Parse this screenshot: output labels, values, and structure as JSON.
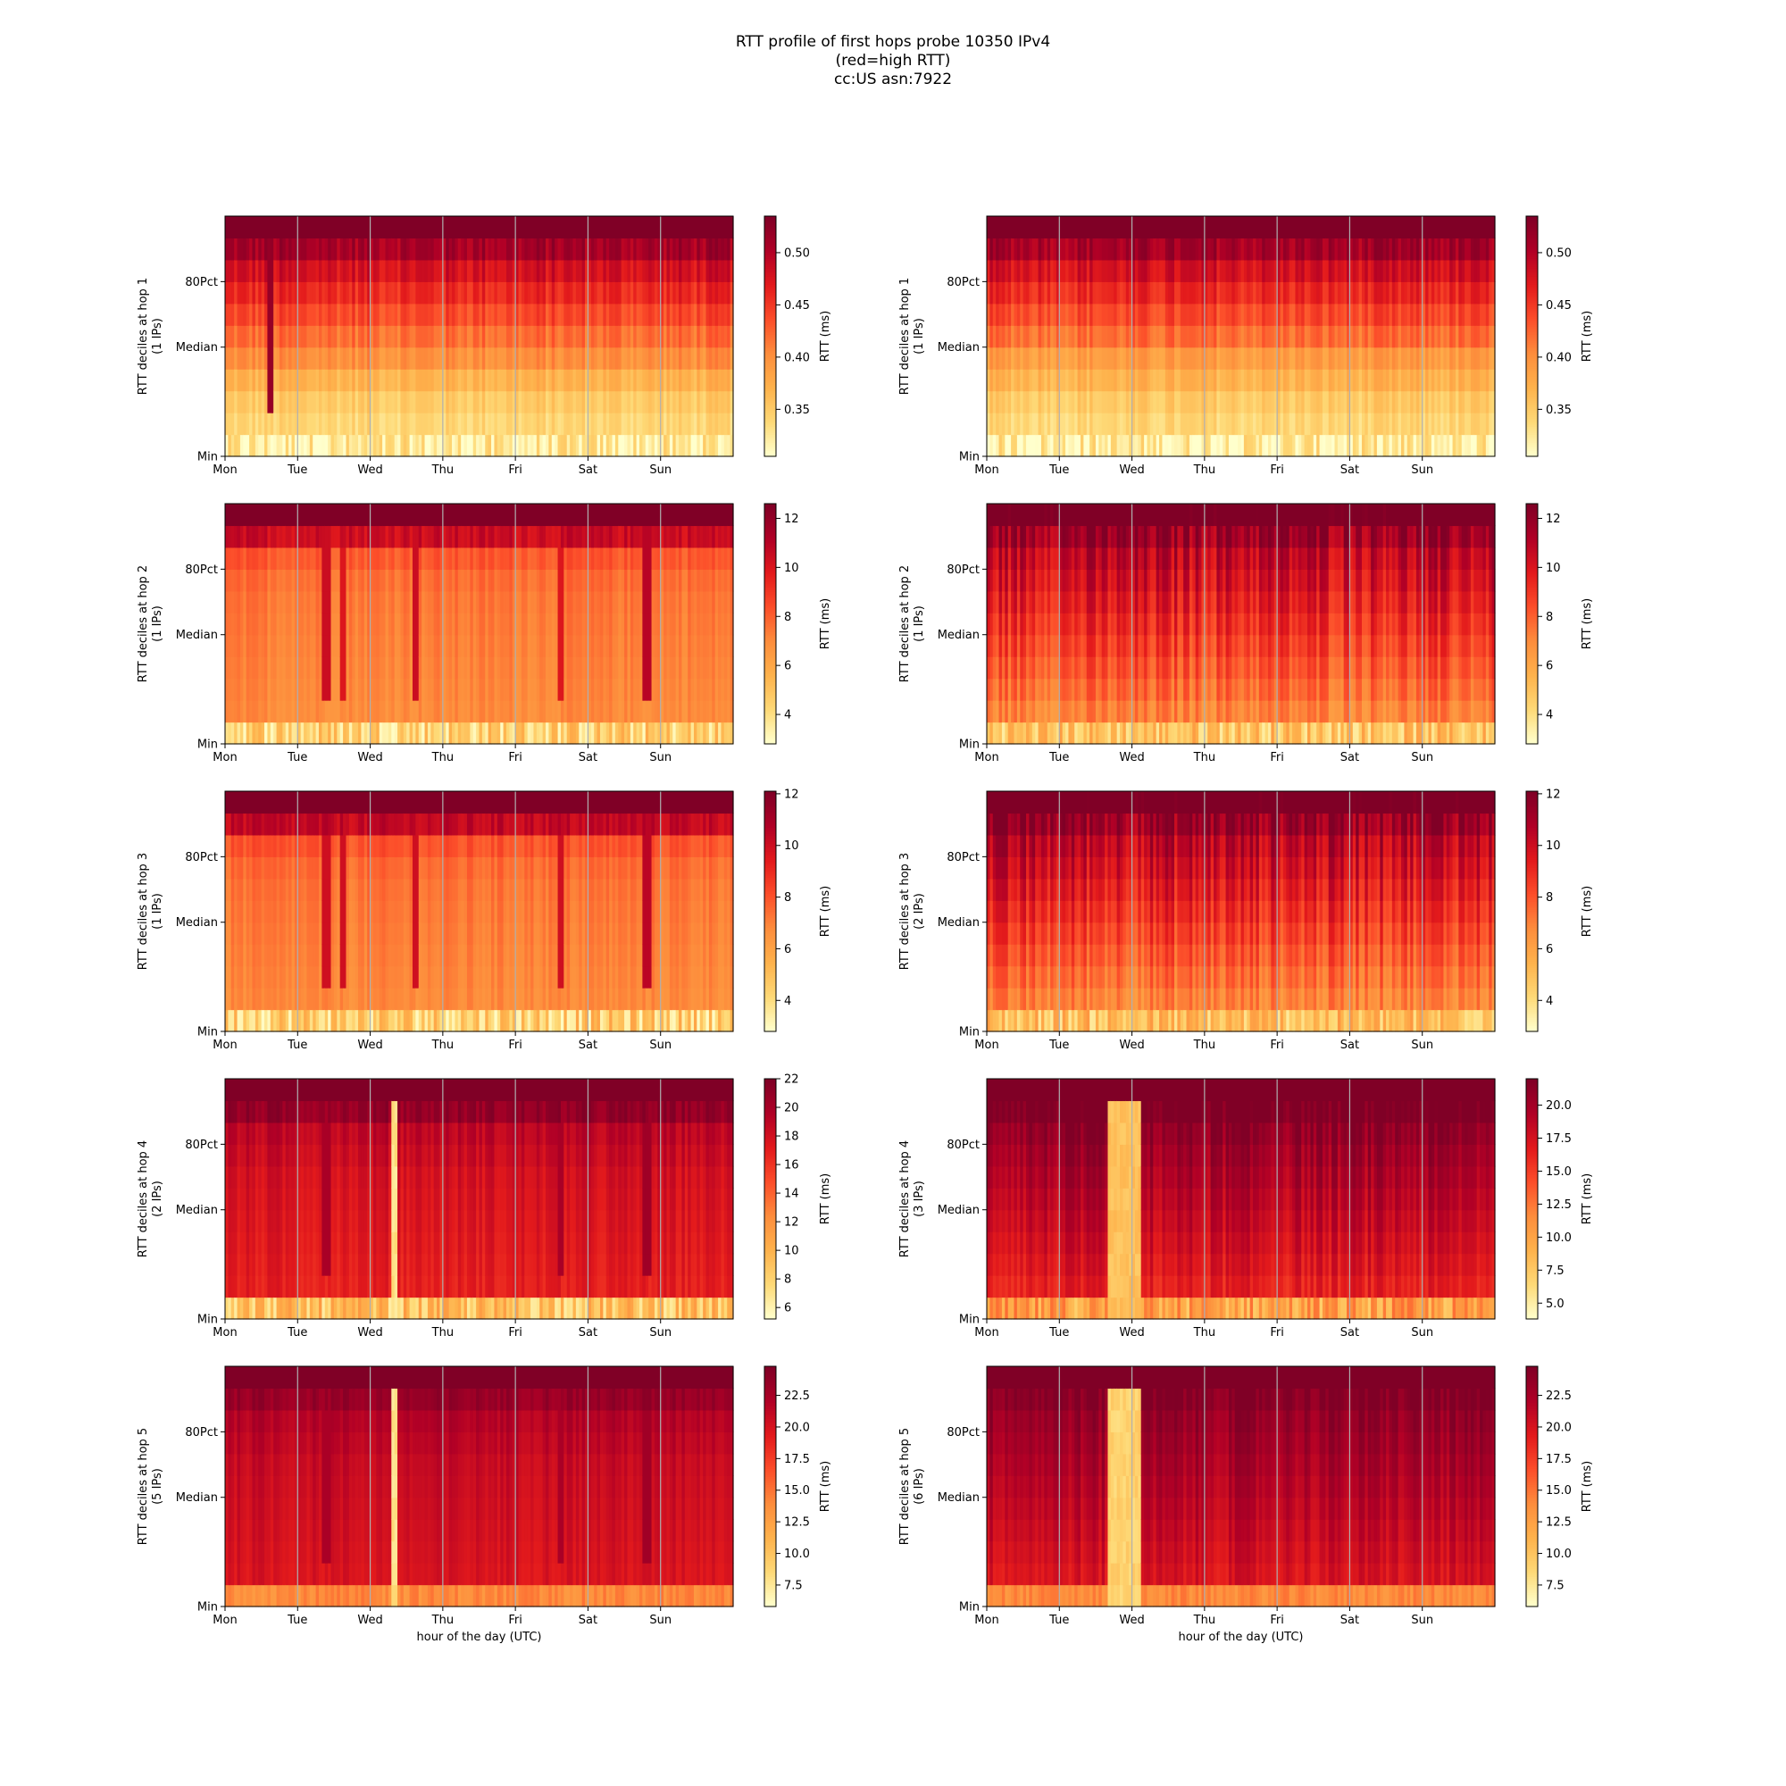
{
  "title_lines": [
    "RTT profile of first hops probe 10350 IPv4",
    "(red=high RTT)",
    "cc:US asn:7922"
  ],
  "chart_data": {
    "type": "heatmap",
    "x_ticks": [
      "Mon",
      "Tue",
      "Wed",
      "Thu",
      "Fri",
      "Sat",
      "Sun"
    ],
    "y_ticks": [
      "Min",
      "Median",
      "80Pct"
    ],
    "xlabel": "hour of the day (UTC)",
    "colorbar_label": "RTT (ms)",
    "colormap": [
      "#ffffcc",
      "#fed976",
      "#feb24c",
      "#fd8d3c",
      "#fc4e2a",
      "#e31a1c",
      "#b10026",
      "#800026"
    ],
    "grid": "vertical lines at each day",
    "panels": [
      {
        "column": 0,
        "row": 0,
        "ylabel": "RTT deciles at hop 1",
        "ips": "(1 IPs)",
        "colorbar": {
          "min": 0.305,
          "max": 0.535,
          "ticks": [
            "0.35",
            "0.40",
            "0.45",
            "0.50"
          ],
          "tick_values": [
            0.35,
            0.4,
            0.45,
            0.5
          ]
        },
        "deciles": [
          0.32,
          0.34,
          0.35,
          0.37,
          0.4,
          0.42,
          0.44,
          0.46,
          0.48,
          0.51,
          0.56
        ],
        "variability": 0.04,
        "baseline_noise": 0.1,
        "spikes": [
          {
            "day": 0.6,
            "width": 0.04,
            "value": 0.52
          }
        ],
        "anomalies": []
      },
      {
        "column": 1,
        "row": 0,
        "ylabel": "RTT deciles at hop 1",
        "ips": "(1 IPs)",
        "colorbar": {
          "min": 0.305,
          "max": 0.535,
          "ticks": [
            "0.35",
            "0.40",
            "0.45",
            "0.50"
          ],
          "tick_values": [
            0.35,
            0.4,
            0.45,
            0.5
          ]
        },
        "deciles": [
          0.32,
          0.34,
          0.35,
          0.37,
          0.39,
          0.42,
          0.44,
          0.46,
          0.48,
          0.51,
          0.56
        ],
        "variability": 0.04,
        "baseline_noise": 0.1,
        "spikes": [],
        "anomalies": []
      },
      {
        "column": 0,
        "row": 1,
        "ylabel": "RTT deciles at hop 2",
        "ips": "(1 IPs)",
        "colorbar": {
          "min": 2.8,
          "max": 12.6,
          "ticks": [
            "4",
            "6",
            "8",
            "10",
            "12"
          ],
          "tick_values": [
            4,
            6,
            8,
            10,
            12
          ]
        },
        "deciles": [
          4.5,
          7.0,
          7.1,
          7.2,
          7.3,
          7.4,
          7.5,
          7.7,
          8.2,
          10.5,
          14.0
        ],
        "variability": 0.06,
        "baseline_noise": 0.35,
        "spikes": [
          {
            "day": 1.37,
            "width": 0.05,
            "value": 10.5
          },
          {
            "day": 1.6,
            "width": 0.05,
            "value": 10.0
          },
          {
            "day": 2.6,
            "width": 0.04,
            "value": 10.5
          },
          {
            "day": 4.6,
            "width": 0.04,
            "value": 10.0
          },
          {
            "day": 5.8,
            "width": 0.05,
            "value": 11.0
          }
        ],
        "anomalies": []
      },
      {
        "column": 1,
        "row": 1,
        "ylabel": "RTT deciles at hop 2",
        "ips": "(1 IPs)",
        "colorbar": {
          "min": 2.8,
          "max": 12.6,
          "ticks": [
            "4",
            "6",
            "8",
            "10",
            "12"
          ],
          "tick_values": [
            4,
            6,
            8,
            10,
            12
          ]
        },
        "deciles": [
          5.0,
          7.2,
          7.8,
          8.3,
          8.8,
          9.3,
          9.8,
          10.3,
          10.8,
          11.8,
          14.0
        ],
        "variability": 0.12,
        "baseline_noise": 0.3,
        "spikes": [],
        "anomalies": []
      },
      {
        "column": 0,
        "row": 2,
        "ylabel": "RTT deciles at hop 3",
        "ips": "(1 IPs)",
        "colorbar": {
          "min": 2.8,
          "max": 12.1,
          "ticks": [
            "4",
            "6",
            "8",
            "10",
            "12"
          ],
          "tick_values": [
            4,
            6,
            8,
            10,
            12
          ]
        },
        "deciles": [
          4.5,
          6.8,
          6.9,
          7.0,
          7.1,
          7.2,
          7.3,
          7.5,
          8.0,
          10.3,
          13.5
        ],
        "variability": 0.06,
        "baseline_noise": 0.35,
        "spikes": [
          {
            "day": 1.37,
            "width": 0.05,
            "value": 10.0
          },
          {
            "day": 1.6,
            "width": 0.05,
            "value": 10.0
          },
          {
            "day": 2.6,
            "width": 0.04,
            "value": 10.0
          },
          {
            "day": 4.6,
            "width": 0.04,
            "value": 10.0
          },
          {
            "day": 5.8,
            "width": 0.05,
            "value": 10.5
          }
        ],
        "anomalies": []
      },
      {
        "column": 1,
        "row": 2,
        "ylabel": "RTT deciles at hop 3",
        "ips": "(2 IPs)",
        "colorbar": {
          "min": 2.8,
          "max": 12.1,
          "ticks": [
            "4",
            "6",
            "8",
            "10",
            "12"
          ],
          "tick_values": [
            4,
            6,
            8,
            10,
            12
          ]
        },
        "deciles": [
          5.0,
          7.0,
          7.5,
          8.0,
          8.5,
          9.0,
          9.5,
          10.0,
          10.5,
          11.5,
          13.5
        ],
        "variability": 0.12,
        "baseline_noise": 0.3,
        "spikes": [],
        "anomalies": []
      },
      {
        "column": 0,
        "row": 3,
        "ylabel": "RTT deciles at hop 4",
        "ips": "(2 IPs)",
        "colorbar": {
          "min": 5.2,
          "max": 22.0,
          "ticks": [
            "6",
            "8",
            "10",
            "12",
            "14",
            "16",
            "18",
            "20",
            "22"
          ],
          "tick_values": [
            6,
            8,
            10,
            12,
            14,
            16,
            18,
            20,
            22
          ]
        },
        "deciles": [
          9.0,
          17.0,
          17.2,
          17.4,
          17.6,
          17.8,
          18.0,
          18.5,
          19.0,
          21.0,
          25.0
        ],
        "variability": 0.05,
        "baseline_noise": 0.3,
        "spikes": [
          {
            "day": 1.37,
            "width": 0.05,
            "value": 20.0
          },
          {
            "day": 4.6,
            "width": 0.04,
            "value": 20.0
          },
          {
            "day": 5.8,
            "width": 0.05,
            "value": 20.5
          }
        ],
        "anomalies": [
          {
            "start": 2.28,
            "end": 2.35,
            "value": 7.0
          }
        ]
      },
      {
        "column": 1,
        "row": 3,
        "ylabel": "RTT deciles at hop 4",
        "ips": "(3 IPs)",
        "colorbar": {
          "min": 3.8,
          "max": 22.0,
          "ticks": [
            "5.0",
            "7.5",
            "10.0",
            "12.5",
            "15.0",
            "17.5",
            "20.0"
          ],
          "tick_values": [
            5.0,
            7.5,
            10.0,
            12.5,
            15.0,
            17.5,
            20.0
          ]
        },
        "deciles": [
          10.0,
          16.5,
          17.2,
          17.8,
          18.4,
          19.0,
          19.6,
          20.2,
          21.0,
          22.5,
          26.0
        ],
        "variability": 0.08,
        "baseline_noise": 0.3,
        "spikes": [],
        "anomalies": [
          {
            "start": 1.65,
            "end": 2.1,
            "value": 8.0
          }
        ]
      },
      {
        "column": 0,
        "row": 4,
        "ylabel": "RTT deciles at hop 5",
        "ips": "(5 IPs)",
        "colorbar": {
          "min": 5.8,
          "max": 24.8,
          "ticks": [
            "7.5",
            "10.0",
            "12.5",
            "15.0",
            "17.5",
            "20.0",
            "22.5"
          ],
          "tick_values": [
            7.5,
            10.0,
            12.5,
            15.0,
            17.5,
            20.0,
            22.5
          ]
        },
        "deciles": [
          14.0,
          20.0,
          20.2,
          20.4,
          20.6,
          20.8,
          21.0,
          21.5,
          22.0,
          23.5,
          27.0
        ],
        "variability": 0.04,
        "baseline_noise": 0.08,
        "spikes": [
          {
            "day": 1.37,
            "width": 0.05,
            "value": 22.5
          },
          {
            "day": 4.6,
            "width": 0.04,
            "value": 22.5
          },
          {
            "day": 5.8,
            "width": 0.05,
            "value": 23.0
          }
        ],
        "anomalies": [
          {
            "start": 2.28,
            "end": 2.35,
            "value": 8.0
          }
        ]
      },
      {
        "column": 1,
        "row": 4,
        "ylabel": "RTT deciles at hop 5",
        "ips": "(6 IPs)",
        "colorbar": {
          "min": 5.8,
          "max": 24.8,
          "ticks": [
            "7.5",
            "10.0",
            "12.5",
            "15.0",
            "17.5",
            "20.0",
            "22.5"
          ],
          "tick_values": [
            7.5,
            10.0,
            12.5,
            15.0,
            17.5,
            20.0,
            22.5
          ]
        },
        "deciles": [
          14.0,
          20.0,
          20.5,
          21.0,
          21.5,
          22.0,
          22.5,
          23.0,
          23.5,
          24.5,
          28.0
        ],
        "variability": 0.06,
        "baseline_noise": 0.08,
        "spikes": [],
        "anomalies": [
          {
            "start": 1.65,
            "end": 2.1,
            "value": 9.0
          }
        ]
      }
    ]
  }
}
